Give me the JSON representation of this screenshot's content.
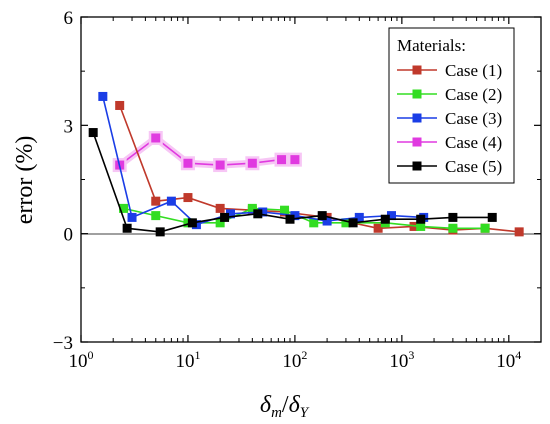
{
  "chart_data": {
    "type": "line",
    "xscale": "log",
    "xlim": [
      1,
      20000
    ],
    "ylim": [
      -3,
      6
    ],
    "xlabel": {
      "main": "δ",
      "sub1": "m",
      "slash": "/",
      "main2": "δ",
      "sub2": "Y"
    },
    "ylabel": "error (%)",
    "yticks": [
      "−3",
      "0",
      "3",
      "6"
    ],
    "xticks": [
      {
        "base": "10",
        "exp": "0"
      },
      {
        "base": "10",
        "exp": "1"
      },
      {
        "base": "10",
        "exp": "2"
      },
      {
        "base": "10",
        "exp": "3"
      },
      {
        "base": "10",
        "exp": "4"
      }
    ],
    "legend": {
      "title": "Materials:",
      "position": "top-right"
    },
    "series": [
      {
        "name": "Case (1)",
        "color": "#c0392b",
        "x": [
          2.3,
          5,
          10,
          20,
          40,
          80,
          200,
          600,
          1300,
          3000,
          6000,
          12500
        ],
        "y": [
          3.55,
          0.9,
          1.0,
          0.7,
          0.65,
          0.6,
          0.45,
          0.15,
          0.2,
          0.1,
          0.15,
          0.05
        ]
      },
      {
        "name": "Case (2)",
        "color": "#33dd22",
        "x": [
          2.5,
          5,
          10,
          20,
          40,
          80,
          150,
          300,
          700,
          1500,
          3000,
          6000
        ],
        "y": [
          0.7,
          0.5,
          0.3,
          0.3,
          0.7,
          0.65,
          0.3,
          0.3,
          0.3,
          0.2,
          0.15,
          0.15
        ]
      },
      {
        "name": "Case (3)",
        "color": "#1a3de6",
        "x": [
          1.6,
          3,
          7,
          12,
          25,
          50,
          100,
          200,
          400,
          800,
          1600
        ],
        "y": [
          3.8,
          0.45,
          0.9,
          0.25,
          0.55,
          0.6,
          0.5,
          0.35,
          0.45,
          0.5,
          0.45
        ]
      },
      {
        "name": "Case (4)",
        "color": "#e03ae0",
        "x": [
          2.3,
          5,
          10,
          20,
          40,
          75,
          100
        ],
        "y": [
          1.9,
          2.65,
          1.95,
          1.9,
          1.95,
          2.05,
          2.05
        ]
      },
      {
        "name": "Case (5)",
        "color": "#000000",
        "x": [
          1.3,
          2.7,
          5.5,
          11,
          22,
          45,
          90,
          180,
          350,
          700,
          1500,
          3000,
          7000
        ],
        "y": [
          2.8,
          0.15,
          0.05,
          0.3,
          0.45,
          0.55,
          0.4,
          0.5,
          0.3,
          0.4,
          0.4,
          0.45,
          0.45
        ]
      }
    ]
  }
}
